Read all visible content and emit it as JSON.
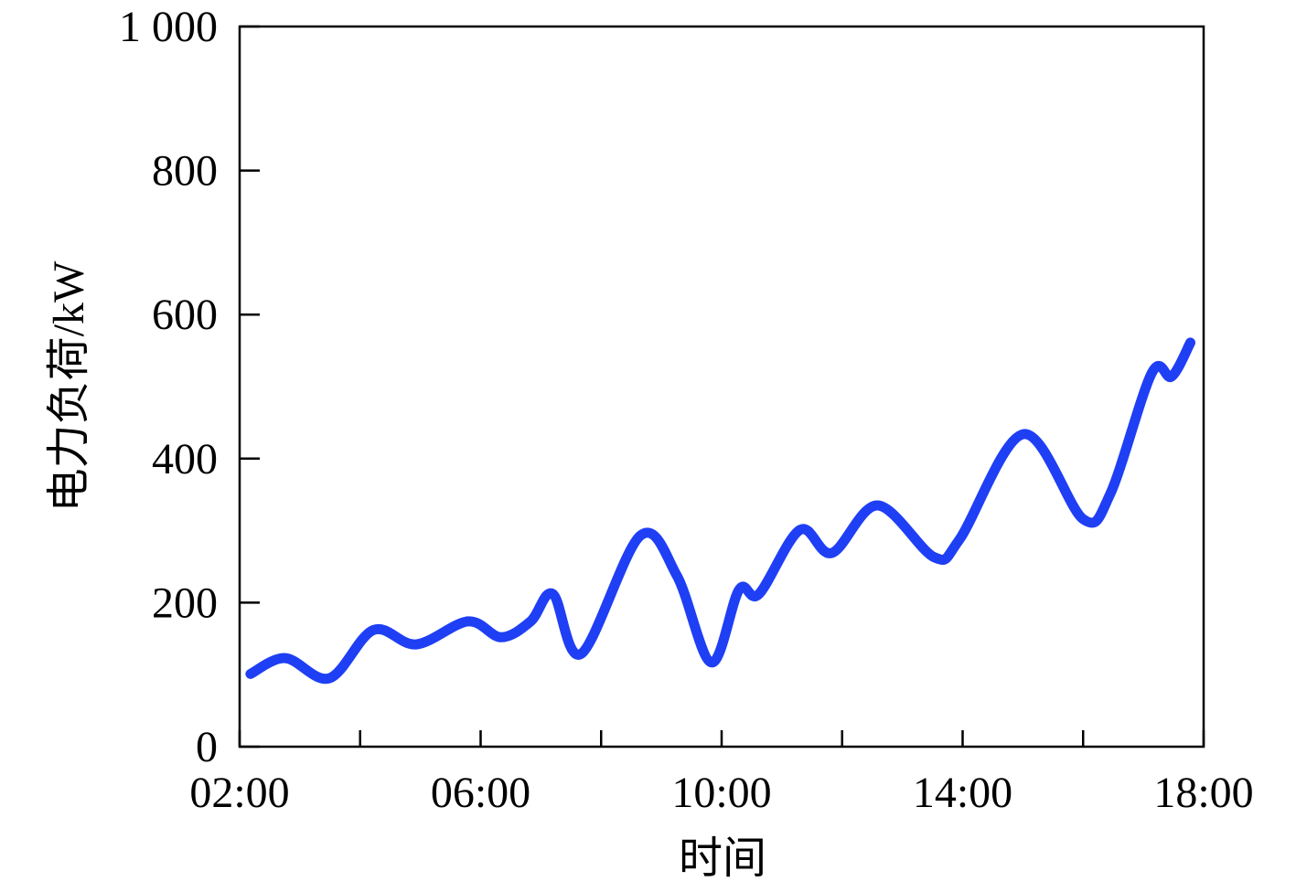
{
  "chart_data": {
    "type": "line",
    "x_label": "时间",
    "y_label": "电力负荷/kW",
    "xlim": [
      2,
      18
    ],
    "xticks": [
      {
        "value": 2,
        "label": "02:00"
      },
      {
        "value": 6,
        "label": "06:00"
      },
      {
        "value": 10,
        "label": "10:00"
      },
      {
        "value": 14,
        "label": "14:00"
      },
      {
        "value": 18,
        "label": "18:00"
      }
    ],
    "xminor_ticks": [
      4,
      8,
      12,
      16
    ],
    "ylim": [
      0,
      1000
    ],
    "yticks": [
      0,
      200,
      400,
      600,
      800,
      {
        "value": 1000,
        "label": "1 000"
      }
    ],
    "grid": false,
    "series": [
      {
        "color": "#1f3ff5",
        "x": [
          2.18,
          2.76,
          3.49,
          4.22,
          4.93,
          5.79,
          6.34,
          6.83,
          7.2,
          7.67,
          8.65,
          9.26,
          9.83,
          10.29,
          10.62,
          11.3,
          11.83,
          12.59,
          13.53,
          13.95,
          15.01,
          16.0,
          16.45,
          17.14,
          17.47,
          17.78
        ],
        "values": [
          101,
          123,
          95,
          162,
          142,
          174,
          152,
          174,
          212,
          129,
          293,
          237,
          117,
          218,
          212,
          301,
          269,
          335,
          263,
          288,
          434,
          316,
          351,
          519,
          514,
          561
        ]
      }
    ]
  }
}
